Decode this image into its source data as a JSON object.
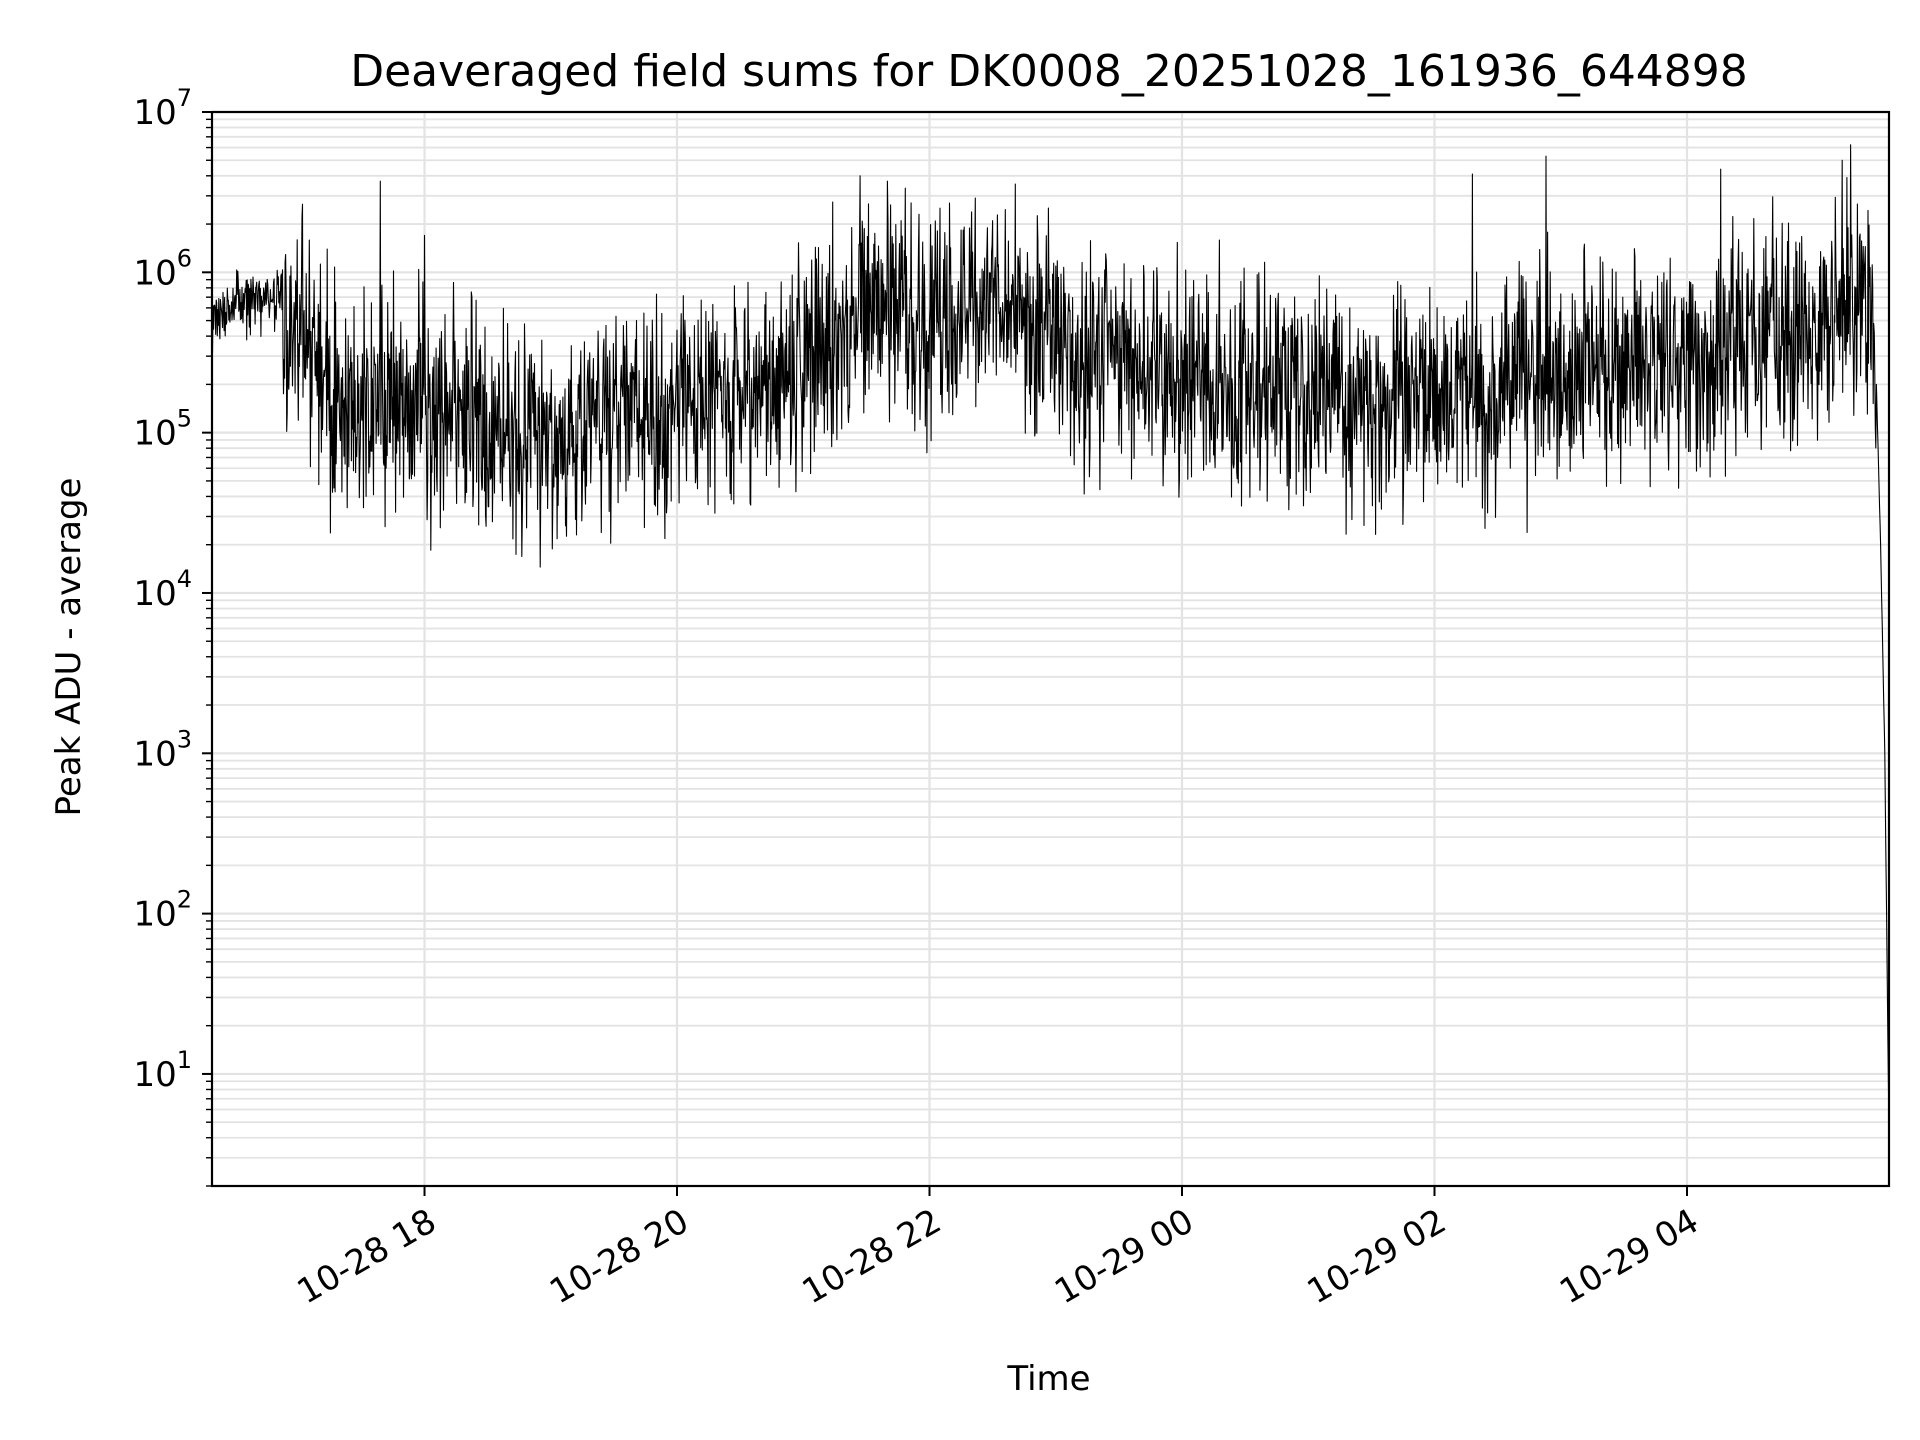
{
  "chart_data": {
    "type": "line",
    "title": "Deaveraged field sums for DK0008_20251028_161936_644898",
    "xlabel": "Time",
    "ylabel": "Peak ADU - average",
    "y_scale": "log",
    "ylim": [
      2,
      10000000
    ],
    "xlim": [
      "2025-10-28 16:19",
      "2025-10-29 05:36"
    ],
    "grid": true,
    "x_ticks": [
      {
        "t": "2025-10-28 18:00",
        "label": "10-28 18"
      },
      {
        "t": "2025-10-28 20:00",
        "label": "10-28 20"
      },
      {
        "t": "2025-10-28 22:00",
        "label": "10-28 22"
      },
      {
        "t": "2025-10-29 00:00",
        "label": "10-29 00"
      },
      {
        "t": "2025-10-29 02:00",
        "label": "10-29 02"
      },
      {
        "t": "2025-10-29 04:00",
        "label": "10-29 04"
      }
    ],
    "y_ticks": [
      {
        "value": 10,
        "base": "10",
        "exp": "1"
      },
      {
        "value": 100,
        "base": "10",
        "exp": "2"
      },
      {
        "value": 1000,
        "base": "10",
        "exp": "3"
      },
      {
        "value": 10000,
        "base": "10",
        "exp": "4"
      },
      {
        "value": 100000,
        "base": "10",
        "exp": "5"
      },
      {
        "value": 1000000,
        "base": "10",
        "exp": "6"
      },
      {
        "value": 10000000,
        "base": "10",
        "exp": "7"
      }
    ],
    "series": [
      {
        "color": "#000000",
        "points": [
          [
            "2025-10-28 16:19",
            450000
          ],
          [
            "2025-10-28 16:30",
            650000
          ],
          [
            "2025-10-28 16:45",
            700000
          ],
          [
            "2025-10-28 17:00",
            400000
          ],
          [
            "2025-10-28 17:15",
            200000
          ],
          [
            "2025-10-28 17:30",
            120000
          ],
          [
            "2025-10-28 17:45",
            150000
          ],
          [
            "2025-10-28 18:00",
            130000
          ],
          [
            "2025-10-28 18:15",
            120000
          ],
          [
            "2025-10-28 18:30",
            110000
          ],
          [
            "2025-10-28 18:45",
            100000
          ],
          [
            "2025-10-28 19:00",
            95000
          ],
          [
            "2025-10-28 19:15",
            100000
          ],
          [
            "2025-10-28 19:30",
            120000
          ],
          [
            "2025-10-28 19:45",
            140000
          ],
          [
            "2025-10-28 20:00",
            150000
          ],
          [
            "2025-10-28 20:15",
            160000
          ],
          [
            "2025-10-28 20:30",
            180000
          ],
          [
            "2025-10-28 20:45",
            220000
          ],
          [
            "2025-10-28 21:00",
            280000
          ],
          [
            "2025-10-28 21:15",
            400000
          ],
          [
            "2025-10-28 21:30",
            600000
          ],
          [
            "2025-10-28 21:45",
            550000
          ],
          [
            "2025-10-28 22:00",
            500000
          ],
          [
            "2025-10-28 22:15",
            600000
          ],
          [
            "2025-10-28 22:30",
            650000
          ],
          [
            "2025-10-28 22:45",
            500000
          ],
          [
            "2025-10-28 23:00",
            350000
          ],
          [
            "2025-10-28 23:15",
            300000
          ],
          [
            "2025-10-28 23:30",
            280000
          ],
          [
            "2025-10-28 23:45",
            260000
          ],
          [
            "2025-10-29 00:00",
            250000
          ],
          [
            "2025-10-29 00:15",
            220000
          ],
          [
            "2025-10-29 00:30",
            200000
          ],
          [
            "2025-10-29 00:45",
            190000
          ],
          [
            "2025-10-29 01:00",
            180000
          ],
          [
            "2025-10-29 01:15",
            160000
          ],
          [
            "2025-10-29 01:30",
            150000
          ],
          [
            "2025-10-29 01:45",
            150000
          ],
          [
            "2025-10-29 02:00",
            160000
          ],
          [
            "2025-10-29 02:15",
            170000
          ],
          [
            "2025-10-29 02:30",
            180000
          ],
          [
            "2025-10-29 02:45",
            200000
          ],
          [
            "2025-10-29 03:00",
            220000
          ],
          [
            "2025-10-29 03:15",
            240000
          ],
          [
            "2025-10-29 03:30",
            260000
          ],
          [
            "2025-10-29 03:45",
            300000
          ],
          [
            "2025-10-29 04:00",
            320000
          ],
          [
            "2025-10-29 04:15",
            330000
          ],
          [
            "2025-10-29 04:30",
            350000
          ],
          [
            "2025-10-29 04:45",
            380000
          ],
          [
            "2025-10-29 05:00",
            450000
          ],
          [
            "2025-10-29 05:15",
            700000
          ],
          [
            "2025-10-29 05:25",
            800000
          ],
          [
            "2025-10-29 05:30",
            200000
          ],
          [
            "2025-10-29 05:32",
            20000
          ],
          [
            "2025-10-29 05:34",
            1000
          ],
          [
            "2025-10-29 05:36",
            4
          ]
        ]
      }
    ],
    "spikes": [
      [
        "2025-10-28 17:39",
        3700000
      ],
      [
        "2025-10-28 18:00",
        1700000
      ],
      [
        "2025-10-28 21:27",
        4000000
      ],
      [
        "2025-10-28 21:55",
        2300000
      ],
      [
        "2025-10-28 22:30",
        2100000
      ],
      [
        "2025-10-29 02:18",
        4100000
      ],
      [
        "2025-10-29 02:53",
        5300000
      ],
      [
        "2025-10-29 04:16",
        4400000
      ],
      [
        "2025-10-29 05:16",
        3900000
      ]
    ]
  }
}
